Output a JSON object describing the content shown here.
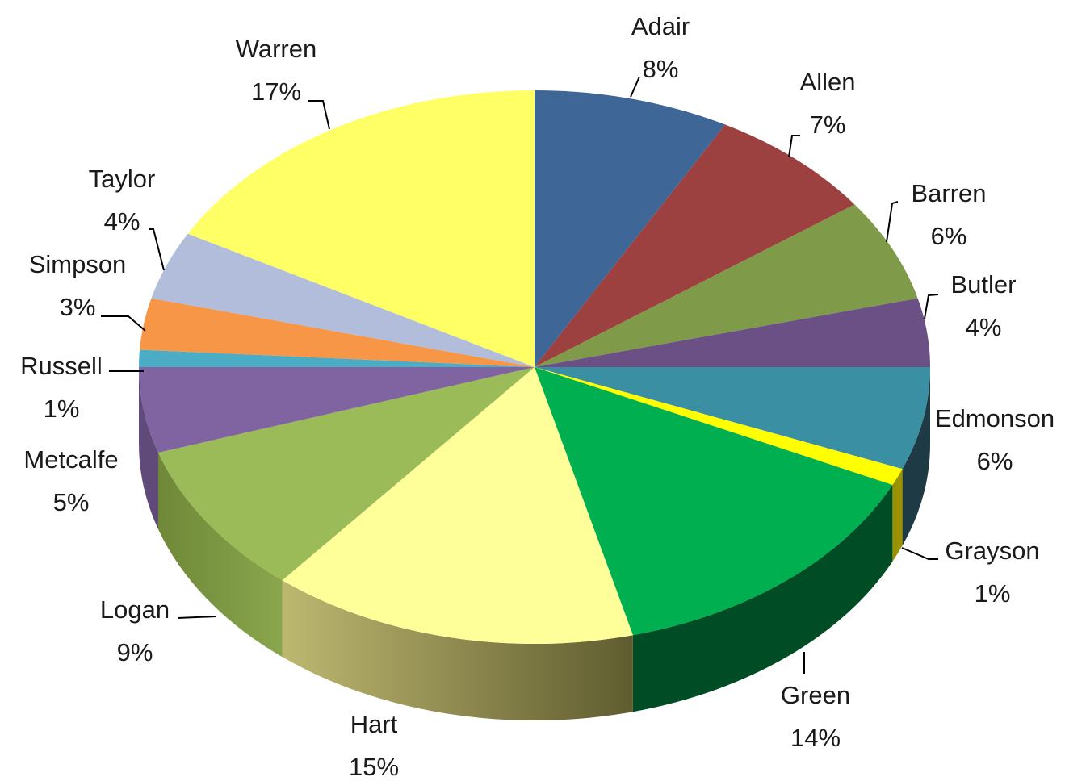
{
  "chart_data": {
    "type": "pie",
    "style": "3d",
    "slices": [
      {
        "label": "Adair",
        "pct_label": "8%",
        "value": 8,
        "color": "#3E6797"
      },
      {
        "label": "Allen",
        "pct_label": "7%",
        "value": 7,
        "color": "#9C4140"
      },
      {
        "label": "Barren",
        "pct_label": "6%",
        "value": 6,
        "color": "#7F9A48"
      },
      {
        "label": "Butler",
        "pct_label": "4%",
        "value": 4,
        "color": "#6A5085"
      },
      {
        "label": "Edmonson",
        "pct_label": "6%",
        "value": 6,
        "color": "#3B8FA3"
      },
      {
        "label": "Grayson",
        "pct_label": "1%",
        "value": 1,
        "color": "#FFFF00"
      },
      {
        "label": "Green",
        "pct_label": "14%",
        "value": 14,
        "color": "#00B050"
      },
      {
        "label": "Hart",
        "pct_label": "15%",
        "value": 15,
        "color": "#FFFF99"
      },
      {
        "label": "Logan",
        "pct_label": "9%",
        "value": 9,
        "color": "#9BBB59"
      },
      {
        "label": "Metcalfe",
        "pct_label": "5%",
        "value": 5,
        "color": "#8064A2"
      },
      {
        "label": "Russell",
        "pct_label": "1%",
        "value": 1,
        "color": "#4BACC6"
      },
      {
        "label": "Simpson",
        "pct_label": "3%",
        "value": 3,
        "color": "#F79646"
      },
      {
        "label": "Taylor",
        "pct_label": "4%",
        "value": 4,
        "color": "#B1BDDA"
      },
      {
        "label": "Warren",
        "pct_label": "17%",
        "value": 17,
        "color": "#FFFF66"
      }
    ],
    "title": "",
    "legend": "none",
    "data_labels": "category name and percentage"
  }
}
